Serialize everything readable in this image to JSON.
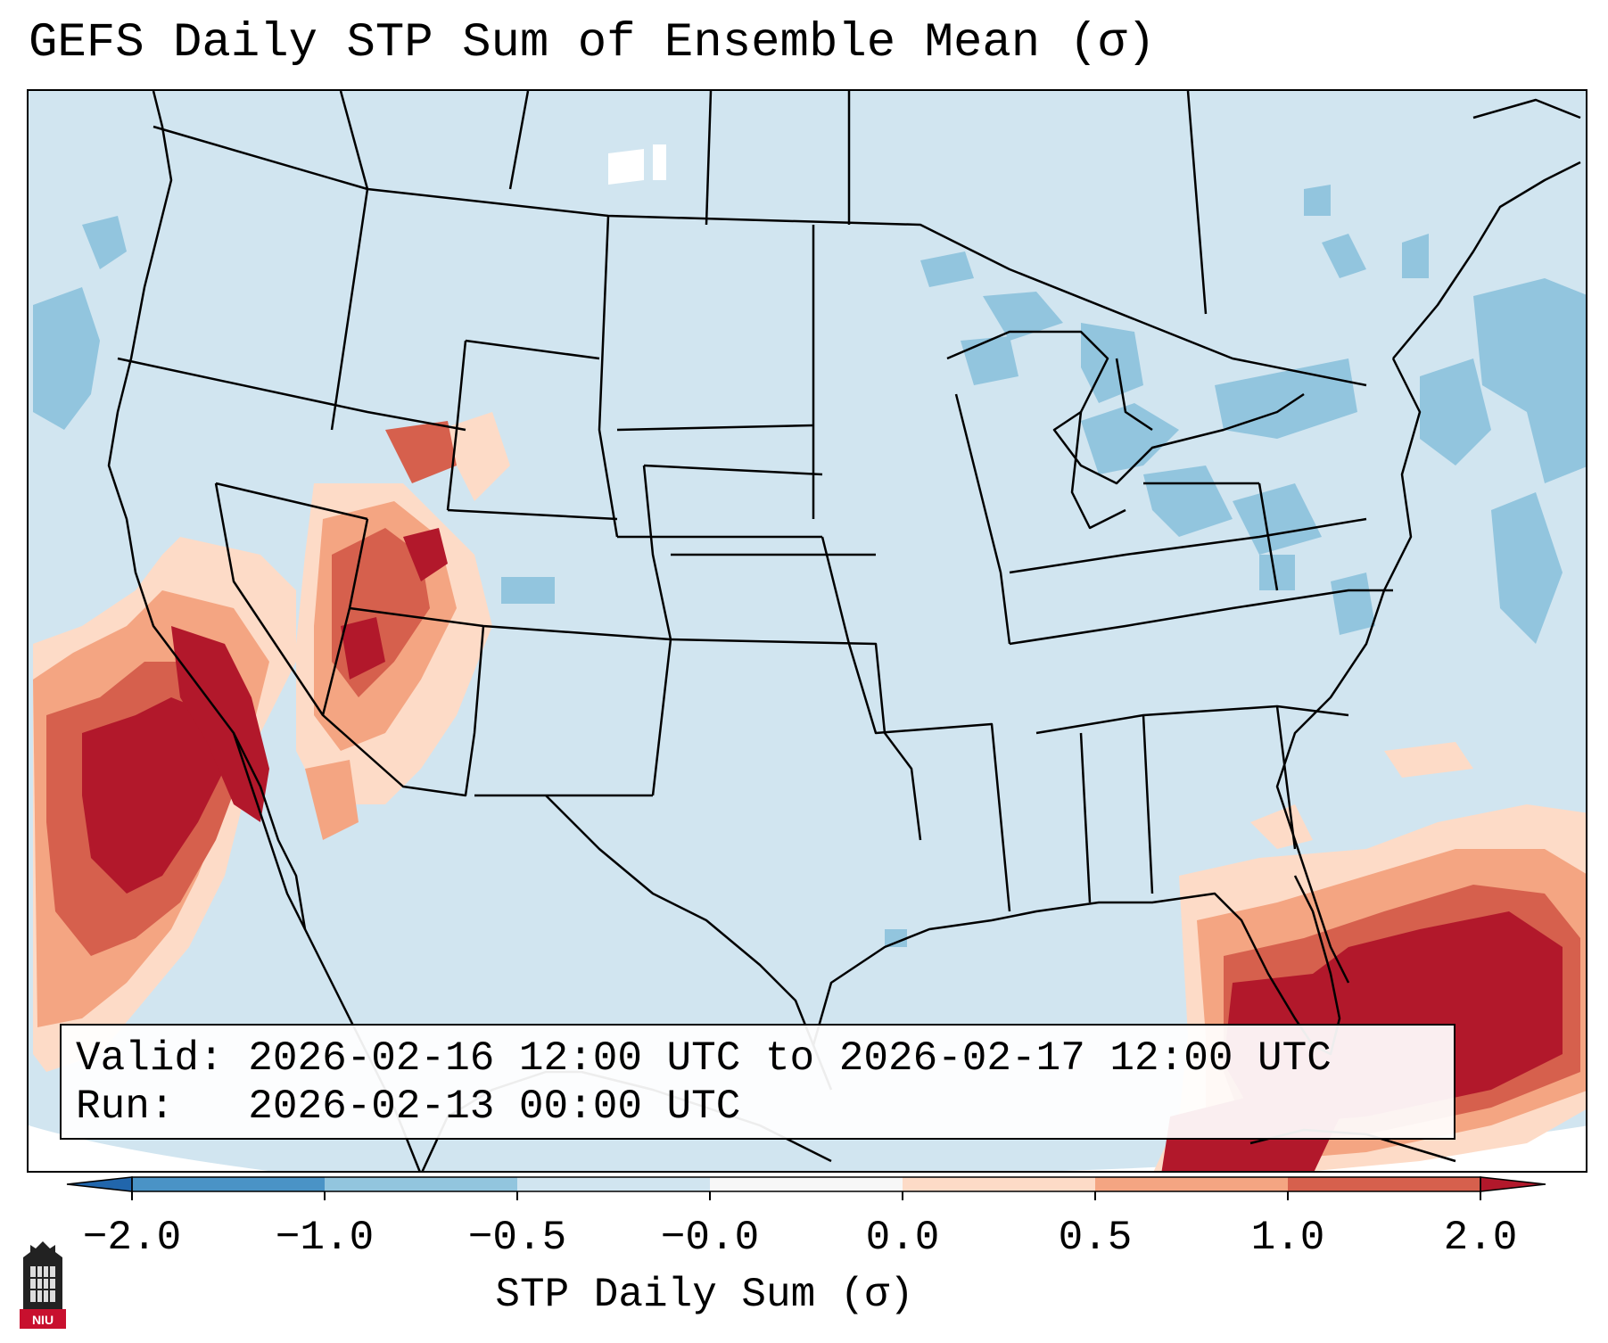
{
  "title": "GEFS Daily STP Sum of Ensemble Mean (σ)",
  "info": {
    "valid_label": "Valid:",
    "valid_value": "2026-02-16 12:00 UTC to 2026-02-17 12:00 UTC",
    "run_label": "Run:",
    "run_value": "2026-02-13 00:00 UTC"
  },
  "colorbar": {
    "label": "STP Daily Sum (σ)",
    "ticks": [
      "−2.0",
      "−1.0",
      "−0.5",
      "−0.0",
      "0.0",
      "0.5",
      "1.0",
      "2.0"
    ],
    "colors": [
      "#4a93c6",
      "#92c5de",
      "#d1e5f0",
      "#f7f7f7",
      "#fddbc7",
      "#f4a582",
      "#d6604d",
      "#b2182b"
    ],
    "extend_low_color": "#2166ac",
    "extend_high_color": "#b2182b"
  },
  "logo": {
    "text": "NIU",
    "color": "#c8102e"
  },
  "map": {
    "background_color": "#d1e5f0",
    "positive_regions": [
      "California coast and Pacific offshore",
      "Nevada",
      "Utah",
      "Arizona",
      "Florida and Caribbean"
    ],
    "negative_regions": [
      "Great Lakes",
      "New York",
      "Atlantic offshore",
      "Pacific Northwest offshore"
    ]
  }
}
